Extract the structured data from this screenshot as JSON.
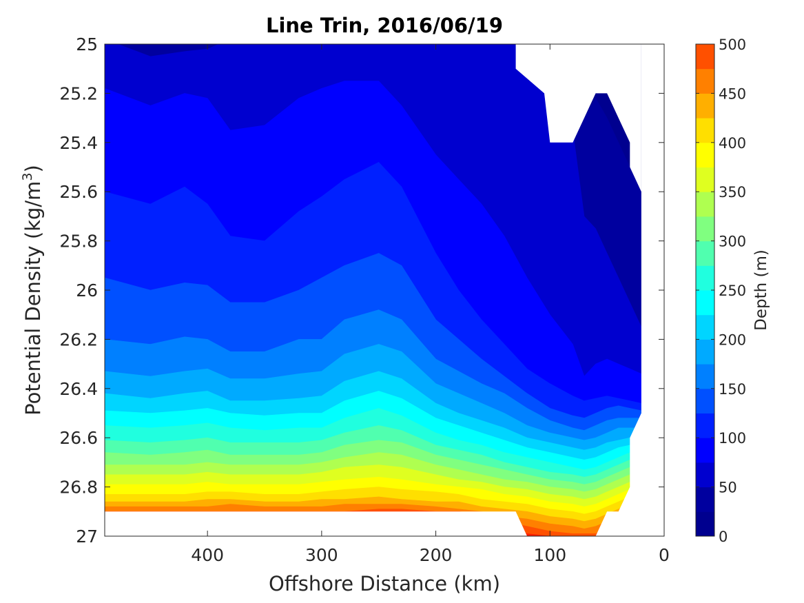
{
  "chart_data": {
    "type": "filled-contour",
    "title": "Line Trin, 2016/06/19",
    "xlabel": "Offshore Distance (km)",
    "ylabel_main": "Potential Density (kg/m",
    "ylabel_sup": "3",
    "ylabel_end": ")",
    "xlim": [
      490,
      0
    ],
    "ylim": [
      25,
      27
    ],
    "x_ticks": [
      "400",
      "300",
      "200",
      "100",
      "0"
    ],
    "x_tick_values": [
      400,
      300,
      200,
      100,
      0
    ],
    "y_ticks": [
      "25",
      "25.2",
      "25.4",
      "25.6",
      "25.8",
      "26",
      "26.2",
      "26.4",
      "26.6",
      "26.8",
      "27"
    ],
    "y_tick_values": [
      25,
      25.2,
      25.4,
      25.6,
      25.8,
      26,
      26.2,
      26.4,
      26.6,
      26.8,
      27
    ],
    "colorbar": {
      "label": "Depth (m)",
      "range": [
        0,
        500
      ],
      "ticks": [
        "500",
        "450",
        "400",
        "350",
        "300",
        "250",
        "200",
        "150",
        "100",
        "50",
        "0"
      ],
      "tick_values": [
        500,
        450,
        400,
        350,
        300,
        250,
        200,
        150,
        100,
        50,
        0
      ],
      "level_step": 25,
      "colors": [
        "#00008f",
        "#00009f",
        "#0000cf",
        "#0000ff",
        "#0020ff",
        "#0050ff",
        "#0080ff",
        "#00aaff",
        "#00d5ff",
        "#00ffff",
        "#20ffdf",
        "#50ffaf",
        "#80ff80",
        "#afff50",
        "#dfff20",
        "#ffff00",
        "#ffdf00",
        "#ffaf00",
        "#ff8000",
        "#ff5000",
        "#ff2000",
        "#df0000",
        "#c00000",
        "#a00000",
        "#800000"
      ]
    },
    "isolines": {
      "x": [
        490,
        450,
        420,
        400,
        380,
        350,
        320,
        300,
        280,
        250,
        230,
        200,
        180,
        160,
        140,
        120,
        100,
        80,
        70,
        60,
        50,
        40,
        30,
        20
      ],
      "levels": [
        25,
        50,
        75,
        100,
        125,
        150,
        175,
        200,
        225,
        250,
        275,
        300,
        325,
        350,
        375,
        400,
        425,
        450,
        475,
        500
      ],
      "y": [
        [
          24.92,
          24.95,
          24.95,
          24.95,
          24.95,
          24.95,
          24.96,
          24.96,
          24.96,
          24.96,
          24.96,
          24.96,
          24.96,
          24.96,
          24.97,
          25.0,
          25.15,
          25.35,
          25.3,
          25.22,
          25.3,
          25.4,
          25.5,
          25.6
        ],
        [
          24.98,
          25.05,
          25.03,
          25.02,
          24.98,
          24.97,
          24.98,
          24.98,
          24.98,
          24.97,
          24.97,
          24.97,
          24.97,
          24.97,
          24.97,
          25.0,
          25.15,
          25.35,
          25.7,
          25.75,
          25.85,
          25.95,
          26.05,
          26.15
        ],
        [
          25.18,
          25.25,
          25.2,
          25.22,
          25.35,
          25.33,
          25.22,
          25.18,
          25.15,
          25.15,
          25.25,
          25.45,
          25.55,
          25.65,
          25.78,
          25.95,
          26.1,
          26.22,
          26.35,
          26.3,
          26.28,
          26.3,
          26.32,
          26.34
        ],
        [
          25.6,
          25.65,
          25.58,
          25.65,
          25.78,
          25.8,
          25.68,
          25.62,
          25.55,
          25.48,
          25.58,
          25.85,
          26.0,
          26.12,
          26.22,
          26.32,
          26.38,
          26.43,
          26.45,
          26.44,
          26.43,
          26.44,
          26.45,
          26.46
        ],
        [
          25.95,
          26.0,
          25.97,
          25.98,
          26.05,
          26.05,
          26.0,
          25.95,
          25.9,
          25.85,
          25.9,
          26.12,
          26.2,
          26.28,
          26.35,
          26.42,
          26.48,
          26.51,
          26.52,
          26.5,
          26.48,
          26.47,
          26.48,
          26.49
        ],
        [
          26.2,
          26.22,
          26.19,
          26.2,
          26.25,
          26.25,
          26.2,
          26.2,
          26.12,
          26.08,
          26.12,
          26.28,
          26.33,
          26.38,
          26.42,
          26.48,
          26.53,
          26.56,
          26.57,
          26.55,
          26.53,
          26.52,
          26.52,
          26.52
        ],
        [
          26.33,
          26.35,
          26.33,
          26.32,
          26.36,
          26.36,
          26.34,
          26.33,
          26.26,
          26.22,
          26.25,
          26.38,
          26.42,
          26.46,
          26.5,
          26.55,
          26.58,
          26.6,
          26.61,
          26.6,
          26.58,
          26.56,
          26.56,
          26.56
        ],
        [
          26.42,
          26.44,
          26.42,
          26.41,
          26.45,
          26.45,
          26.44,
          26.43,
          26.37,
          26.33,
          26.36,
          26.46,
          26.5,
          26.53,
          26.56,
          26.6,
          26.62,
          26.64,
          26.65,
          26.64,
          26.62,
          26.61,
          26.6,
          26.6
        ],
        [
          26.49,
          26.5,
          26.49,
          26.48,
          26.5,
          26.51,
          26.5,
          26.5,
          26.45,
          26.41,
          26.44,
          26.52,
          26.55,
          26.58,
          26.61,
          26.64,
          26.66,
          26.68,
          26.69,
          26.68,
          26.66,
          26.64,
          26.63,
          26.63
        ],
        [
          26.55,
          26.56,
          26.55,
          26.54,
          26.56,
          26.57,
          26.56,
          26.56,
          26.52,
          26.48,
          26.51,
          26.58,
          26.61,
          26.63,
          26.66,
          26.68,
          26.7,
          26.72,
          26.73,
          26.72,
          26.7,
          26.68,
          26.66,
          26.65
        ],
        [
          26.61,
          26.62,
          26.61,
          26.6,
          26.62,
          26.62,
          26.62,
          26.61,
          26.58,
          26.55,
          26.57,
          26.63,
          26.65,
          26.67,
          26.7,
          26.72,
          26.74,
          26.75,
          26.76,
          26.75,
          26.73,
          26.71,
          26.69,
          26.67
        ],
        [
          26.66,
          26.67,
          26.66,
          26.65,
          26.67,
          26.67,
          26.67,
          26.66,
          26.63,
          26.61,
          26.62,
          26.67,
          26.69,
          26.71,
          26.73,
          26.75,
          26.77,
          26.78,
          26.79,
          26.78,
          26.76,
          26.74,
          26.72,
          26.7
        ],
        [
          26.71,
          26.71,
          26.71,
          26.7,
          26.71,
          26.71,
          26.71,
          26.7,
          26.68,
          26.66,
          26.67,
          26.71,
          26.73,
          26.75,
          26.77,
          26.78,
          26.8,
          26.81,
          26.82,
          26.81,
          26.79,
          26.77,
          26.75,
          26.73
        ],
        [
          26.75,
          26.75,
          26.75,
          26.74,
          26.75,
          26.75,
          26.75,
          26.74,
          26.72,
          26.71,
          26.72,
          26.75,
          26.77,
          26.78,
          26.8,
          26.81,
          26.83,
          26.84,
          26.85,
          26.84,
          26.82,
          26.8,
          26.78,
          26.76
        ],
        [
          26.79,
          26.79,
          26.79,
          26.78,
          26.79,
          26.79,
          26.79,
          26.78,
          26.77,
          26.76,
          26.77,
          26.79,
          26.8,
          26.81,
          26.83,
          26.84,
          26.86,
          26.87,
          26.88,
          26.87,
          26.85,
          26.83,
          26.81,
          26.79
        ],
        [
          26.83,
          26.83,
          26.83,
          26.82,
          26.82,
          26.83,
          26.83,
          26.82,
          26.81,
          26.8,
          26.81,
          26.82,
          26.83,
          26.85,
          26.86,
          26.87,
          26.89,
          26.9,
          26.91,
          26.9,
          26.88,
          26.86,
          26.84,
          26.82
        ],
        [
          26.86,
          26.86,
          26.86,
          26.85,
          26.85,
          26.86,
          26.86,
          26.85,
          26.85,
          26.84,
          26.85,
          26.86,
          26.86,
          26.88,
          26.89,
          26.9,
          26.92,
          26.93,
          26.94,
          26.93,
          26.91,
          26.89,
          26.87,
          26.85
        ],
        [
          26.88,
          26.88,
          26.88,
          26.88,
          26.87,
          26.88,
          26.88,
          26.88,
          26.87,
          26.87,
          26.87,
          26.88,
          26.89,
          26.9,
          26.92,
          26.93,
          26.95,
          26.96,
          26.97,
          26.96,
          26.94,
          26.92,
          26.9,
          26.88
        ],
        [
          26.9,
          26.9,
          26.9,
          26.9,
          26.9,
          26.9,
          26.9,
          26.9,
          26.9,
          26.89,
          26.89,
          26.9,
          26.9,
          26.91,
          26.94,
          26.96,
          26.98,
          26.99,
          26.99,
          26.99,
          26.97,
          26.95,
          26.93,
          26.91
        ],
        [
          26.9,
          26.9,
          26.9,
          26.9,
          26.9,
          26.9,
          26.9,
          26.9,
          26.9,
          26.9,
          26.9,
          26.9,
          26.9,
          26.91,
          26.96,
          26.99,
          27.0,
          27.0,
          27.0,
          27.0,
          26.99,
          26.97,
          26.95,
          26.93
        ]
      ]
    },
    "no_data_regions": [
      {
        "name": "top-right-gap",
        "points": [
          [
            130,
            25.0
          ],
          [
            130,
            25.1
          ],
          [
            105,
            25.2
          ],
          [
            100,
            25.4
          ],
          [
            80,
            25.4
          ],
          [
            70,
            25.3
          ],
          [
            60,
            25.2
          ],
          [
            50,
            25.2
          ],
          [
            40,
            25.3
          ],
          [
            30,
            25.4
          ],
          [
            30,
            25.5
          ],
          [
            20,
            25.6
          ],
          [
            20,
            25.0
          ]
        ]
      },
      {
        "name": "bottom-left-gap",
        "points": [
          [
            490,
            26.9
          ],
          [
            140,
            26.9
          ],
          [
            130,
            26.9
          ],
          [
            120,
            27.0
          ],
          [
            490,
            27.0
          ]
        ]
      },
      {
        "name": "bottom-right-gap",
        "points": [
          [
            60,
            27.0
          ],
          [
            50,
            26.9
          ],
          [
            40,
            26.9
          ],
          [
            30,
            26.8
          ],
          [
            30,
            26.6
          ],
          [
            20,
            26.5
          ],
          [
            20,
            25.0
          ],
          [
            0,
            25.0
          ],
          [
            0,
            27.0
          ]
        ]
      }
    ]
  }
}
